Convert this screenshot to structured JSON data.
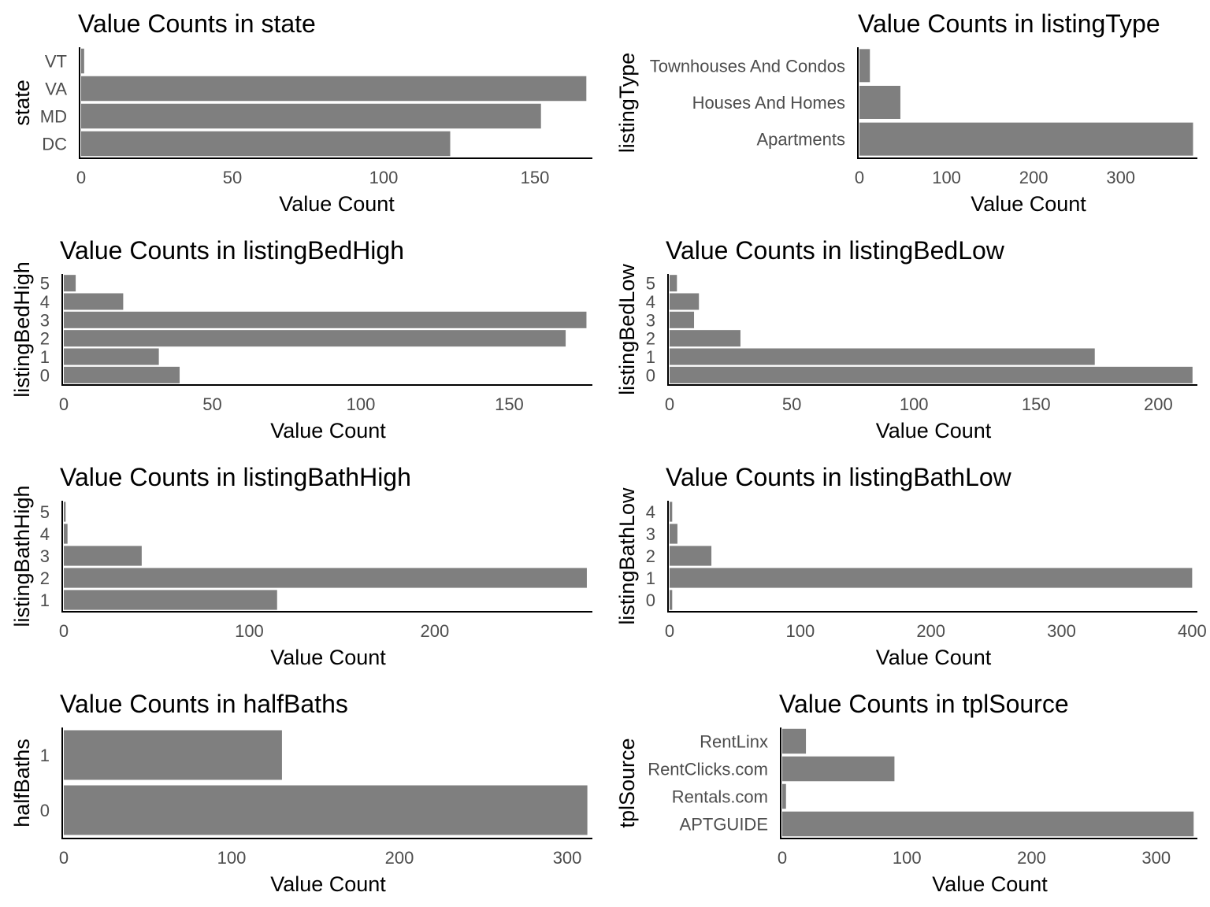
{
  "chart_data": [
    {
      "type": "bar",
      "orientation": "horizontal",
      "title": "Value Counts in state",
      "xlabel": "Value Count",
      "ylabel": "state",
      "categories": [
        "DC",
        "MD",
        "VA",
        "VT"
      ],
      "values": [
        122,
        152,
        167,
        1
      ],
      "xticks": [
        0,
        50,
        100,
        150
      ],
      "xlim": [
        0,
        169
      ]
    },
    {
      "type": "bar",
      "orientation": "horizontal",
      "title": "Value Counts in listingType",
      "xlabel": "Value Count",
      "ylabel": "listingType",
      "categories": [
        "Apartments",
        "Houses And Homes",
        "Townhouses And Condos"
      ],
      "values": [
        383,
        47,
        12
      ],
      "xticks": [
        0,
        100,
        200,
        300
      ],
      "xlim": [
        0,
        388
      ]
    },
    {
      "type": "bar",
      "orientation": "horizontal",
      "title": "Value Counts in listingBedHigh",
      "xlabel": "Value Count",
      "ylabel": "listingBedHigh",
      "categories": [
        "0",
        "1",
        "2",
        "3",
        "4",
        "5"
      ],
      "values": [
        39,
        32,
        169,
        176,
        20,
        4
      ],
      "xticks": [
        0,
        50,
        100,
        150
      ],
      "xlim": [
        0,
        178
      ]
    },
    {
      "type": "bar",
      "orientation": "horizontal",
      "title": "Value Counts in listingBedLow",
      "xlabel": "Value Count",
      "ylabel": "listingBedLow",
      "categories": [
        "0",
        "1",
        "2",
        "3",
        "4",
        "5"
      ],
      "values": [
        214,
        174,
        29,
        10,
        12,
        3
      ],
      "xticks": [
        0,
        50,
        100,
        150,
        200
      ],
      "xlim": [
        0,
        216
      ]
    },
    {
      "type": "bar",
      "orientation": "horizontal",
      "title": "Value Counts in listingBathHigh",
      "xlabel": "Value Count",
      "ylabel": "listingBathHigh",
      "categories": [
        "1",
        "2",
        "3",
        "4",
        "5"
      ],
      "values": [
        115,
        282,
        42,
        2,
        1
      ],
      "xticks": [
        0,
        100,
        200
      ],
      "xlim": [
        0,
        285
      ]
    },
    {
      "type": "bar",
      "orientation": "horizontal",
      "title": "Value Counts in listingBathLow",
      "xlabel": "Value Count",
      "ylabel": "listingBathLow",
      "categories": [
        "0",
        "1",
        "2",
        "3",
        "4"
      ],
      "values": [
        2,
        400,
        32,
        6,
        2
      ],
      "xticks": [
        0,
        100,
        200,
        300,
        400
      ],
      "xlim": [
        0,
        404
      ]
    },
    {
      "type": "bar",
      "orientation": "horizontal",
      "title": "Value Counts in halfBaths",
      "xlabel": "Value Count",
      "ylabel": "halfBaths",
      "categories": [
        "0",
        "1"
      ],
      "values": [
        312,
        130
      ],
      "xticks": [
        0,
        100,
        200,
        300
      ],
      "xlim": [
        0,
        315
      ]
    },
    {
      "type": "bar",
      "orientation": "horizontal",
      "title": "Value Counts in tplSource",
      "xlabel": "Value Count",
      "ylabel": "tplSource",
      "categories": [
        "APTGUIDE",
        "Rentals.com",
        "RentClicks.com",
        "RentLinx"
      ],
      "values": [
        330,
        3,
        90,
        19
      ],
      "xticks": [
        0,
        100,
        200,
        300
      ],
      "xlim": [
        0,
        333
      ]
    }
  ]
}
